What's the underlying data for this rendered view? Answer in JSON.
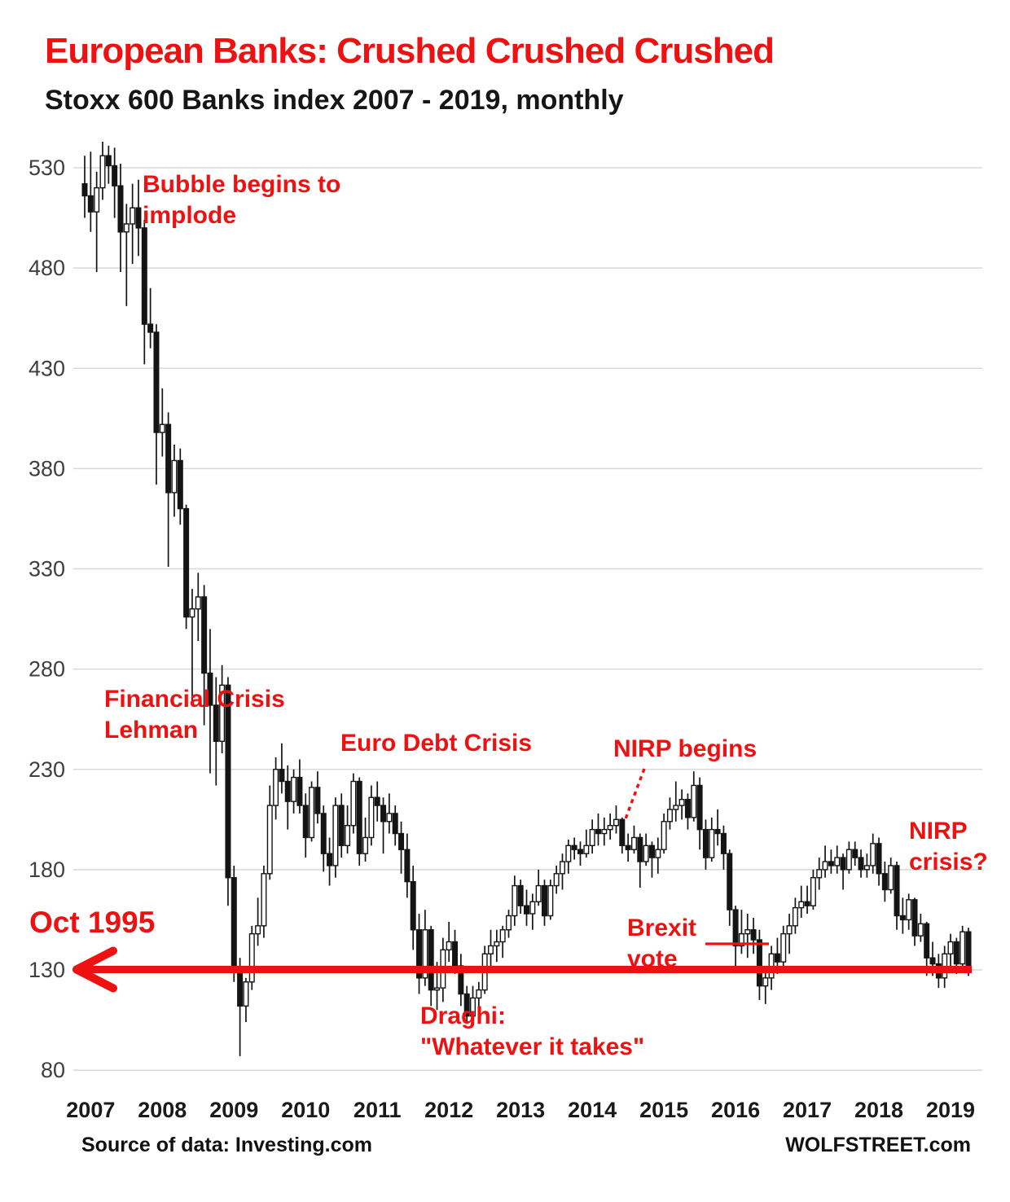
{
  "header": {
    "title": "European Banks: Crushed Crushed Crushed",
    "subtitle": "Stoxx 600 Banks index 2007 - 2019, monthly"
  },
  "footer": {
    "source": "Source of data: Investing.com",
    "brand": "WOLFSTREET.com"
  },
  "colors": {
    "accent_red": "#ee1111",
    "candle": "#141414",
    "grid": "#d8d8d8",
    "y_label": "#3f3f3f",
    "x_label": "#1a1a1a"
  },
  "annotations": {
    "bubble": {
      "line1": "Bubble begins to",
      "line2": "implode"
    },
    "financial_crisis": {
      "line1": "Financial Crisis",
      "line2": "Lehman"
    },
    "euro_debt": {
      "text": "Euro Debt Crisis"
    },
    "nirp_begins": {
      "text": "NIRP begins"
    },
    "brexit": {
      "line1": "Brexit",
      "line2": "vote"
    },
    "nirp_crisis": {
      "line1": "NIRP",
      "line2": "crisis?"
    },
    "oct_1995": {
      "text": "Oct 1995"
    },
    "draghi": {
      "line1": "Draghi:",
      "line2": "\"Whatever it takes\""
    }
  },
  "chart_data": {
    "type": "candlestick",
    "title": "European Banks: Crushed Crushed Crushed",
    "subtitle": "Stoxx 600 Banks index 2007 - 2019, monthly",
    "frequency": "monthly",
    "start": "2007-01",
    "end": "2019-05",
    "x_labels": [
      "2007",
      "2008",
      "2009",
      "2010",
      "2011",
      "2012",
      "2013",
      "2014",
      "2015",
      "2016",
      "2017",
      "2018",
      "2019"
    ],
    "y_ticks": [
      80,
      130,
      180,
      230,
      280,
      330,
      380,
      430,
      480,
      530
    ],
    "ylim": [
      65,
      555
    ],
    "grid": true,
    "reference_line": {
      "value": 130,
      "label": "Oct 1995",
      "style": "thick-red-left-arrow"
    },
    "pointers": {
      "brexit_line": {
        "x1_month": "2016-05",
        "x2_month": "2016-12",
        "value": 142,
        "style": "solid-red"
      },
      "nirp_begins_line": {
        "from_value": 229,
        "to_value": 204,
        "at_month": "2014-08",
        "style": "dashed-red"
      }
    },
    "ohlc_legend": [
      "open",
      "high",
      "low",
      "close"
    ],
    "ohlc": [
      [
        522,
        536,
        505,
        516
      ],
      [
        516,
        538,
        498,
        508
      ],
      [
        508,
        528,
        478,
        520
      ],
      [
        520,
        543,
        514,
        536
      ],
      [
        536,
        541,
        522,
        531
      ],
      [
        531,
        540,
        505,
        521
      ],
      [
        521,
        532,
        478,
        498
      ],
      [
        498,
        512,
        461,
        502
      ],
      [
        502,
        522,
        482,
        510
      ],
      [
        510,
        524,
        486,
        500
      ],
      [
        500,
        504,
        432,
        452
      ],
      [
        452,
        470,
        440,
        448
      ],
      [
        448,
        452,
        372,
        398
      ],
      [
        398,
        420,
        386,
        402
      ],
      [
        402,
        408,
        331,
        368
      ],
      [
        368,
        392,
        356,
        384
      ],
      [
        384,
        390,
        352,
        360
      ],
      [
        360,
        362,
        300,
        306
      ],
      [
        306,
        320,
        264,
        310
      ],
      [
        310,
        328,
        294,
        316
      ],
      [
        316,
        322,
        252,
        278
      ],
      [
        278,
        300,
        228,
        262
      ],
      [
        262,
        276,
        222,
        244
      ],
      [
        244,
        282,
        238,
        272
      ],
      [
        272,
        276,
        162,
        176
      ],
      [
        176,
        182,
        124,
        131
      ],
      [
        131,
        136,
        87,
        112
      ],
      [
        112,
        126,
        104,
        124
      ],
      [
        124,
        152,
        120,
        148
      ],
      [
        148,
        166,
        142,
        152
      ],
      [
        152,
        182,
        146,
        178
      ],
      [
        178,
        222,
        175,
        212
      ],
      [
        212,
        236,
        205,
        230
      ],
      [
        230,
        243,
        218,
        224
      ],
      [
        224,
        232,
        200,
        214
      ],
      [
        214,
        230,
        208,
        226
      ],
      [
        226,
        235,
        208,
        212
      ],
      [
        212,
        218,
        186,
        196
      ],
      [
        196,
        224,
        194,
        221
      ],
      [
        221,
        229,
        203,
        208
      ],
      [
        208,
        212,
        179,
        188
      ],
      [
        188,
        196,
        172,
        182
      ],
      [
        182,
        216,
        176,
        212
      ],
      [
        212,
        218,
        186,
        192
      ],
      [
        192,
        212,
        188,
        202
      ],
      [
        202,
        228,
        198,
        224
      ],
      [
        224,
        226,
        182,
        188
      ],
      [
        188,
        206,
        184,
        196
      ],
      [
        196,
        222,
        192,
        216
      ],
      [
        216,
        224,
        204,
        212
      ],
      [
        212,
        216,
        188,
        204
      ],
      [
        204,
        218,
        198,
        208
      ],
      [
        208,
        212,
        192,
        198
      ],
      [
        198,
        204,
        178,
        190
      ],
      [
        190,
        198,
        166,
        174
      ],
      [
        174,
        182,
        140,
        150
      ],
      [
        150,
        158,
        118,
        126
      ],
      [
        126,
        160,
        122,
        150
      ],
      [
        150,
        152,
        112,
        120
      ],
      [
        120,
        134,
        110,
        121
      ],
      [
        121,
        146,
        114,
        140
      ],
      [
        140,
        154,
        134,
        144
      ],
      [
        144,
        150,
        128,
        132
      ],
      [
        132,
        138,
        112,
        118
      ],
      [
        118,
        122,
        104,
        107
      ],
      [
        107,
        122,
        102,
        116
      ],
      [
        116,
        124,
        105,
        120
      ],
      [
        120,
        142,
        118,
        138
      ],
      [
        138,
        150,
        130,
        142
      ],
      [
        142,
        150,
        134,
        144
      ],
      [
        144,
        152,
        136,
        150
      ],
      [
        150,
        160,
        146,
        157
      ],
      [
        157,
        177,
        152,
        172
      ],
      [
        172,
        175,
        158,
        162
      ],
      [
        162,
        170,
        152,
        158
      ],
      [
        158,
        168,
        150,
        164
      ],
      [
        164,
        180,
        162,
        172
      ],
      [
        172,
        175,
        152,
        157
      ],
      [
        157,
        175,
        155,
        172
      ],
      [
        172,
        182,
        168,
        178
      ],
      [
        178,
        188,
        170,
        184
      ],
      [
        184,
        195,
        178,
        192
      ],
      [
        192,
        196,
        185,
        190
      ],
      [
        190,
        194,
        182,
        188
      ],
      [
        188,
        200,
        186,
        192
      ],
      [
        192,
        205,
        188,
        200
      ],
      [
        200,
        208,
        192,
        198
      ],
      [
        198,
        206,
        192,
        200
      ],
      [
        200,
        208,
        195,
        202
      ],
      [
        202,
        212,
        198,
        205
      ],
      [
        205,
        206,
        188,
        192
      ],
      [
        192,
        198,
        184,
        190
      ],
      [
        190,
        202,
        188,
        196
      ],
      [
        196,
        198,
        171,
        184
      ],
      [
        184,
        198,
        182,
        192
      ],
      [
        192,
        194,
        176,
        186
      ],
      [
        186,
        196,
        178,
        190
      ],
      [
        190,
        208,
        188,
        204
      ],
      [
        204,
        216,
        200,
        210
      ],
      [
        210,
        224,
        204,
        212
      ],
      [
        212,
        220,
        205,
        215
      ],
      [
        215,
        218,
        200,
        206
      ],
      [
        206,
        229,
        204,
        222
      ],
      [
        222,
        226,
        190,
        200
      ],
      [
        200,
        205,
        180,
        186
      ],
      [
        186,
        206,
        184,
        200
      ],
      [
        200,
        210,
        192,
        198
      ],
      [
        198,
        202,
        180,
        188
      ],
      [
        188,
        190,
        152,
        160
      ],
      [
        160,
        162,
        130,
        142
      ],
      [
        142,
        160,
        138,
        148
      ],
      [
        148,
        158,
        136,
        150
      ],
      [
        150,
        156,
        138,
        145
      ],
      [
        145,
        150,
        115,
        122
      ],
      [
        122,
        132,
        113,
        126
      ],
      [
        126,
        142,
        120,
        138
      ],
      [
        138,
        146,
        128,
        134
      ],
      [
        134,
        152,
        132,
        148
      ],
      [
        148,
        158,
        138,
        152
      ],
      [
        152,
        166,
        148,
        161
      ],
      [
        161,
        172,
        156,
        164
      ],
      [
        164,
        172,
        158,
        162
      ],
      [
        162,
        180,
        160,
        176
      ],
      [
        176,
        186,
        170,
        180
      ],
      [
        180,
        192,
        176,
        184
      ],
      [
        184,
        190,
        178,
        182
      ],
      [
        182,
        192,
        178,
        186
      ],
      [
        186,
        188,
        170,
        180
      ],
      [
        180,
        194,
        178,
        190
      ],
      [
        190,
        194,
        182,
        186
      ],
      [
        186,
        190,
        176,
        180
      ],
      [
        180,
        188,
        176,
        182
      ],
      [
        182,
        198,
        178,
        193
      ],
      [
        193,
        196,
        172,
        178
      ],
      [
        178,
        184,
        164,
        170
      ],
      [
        170,
        186,
        168,
        182
      ],
      [
        182,
        184,
        150,
        157
      ],
      [
        157,
        166,
        148,
        155
      ],
      [
        155,
        168,
        150,
        165
      ],
      [
        165,
        166,
        142,
        147
      ],
      [
        147,
        158,
        144,
        153
      ],
      [
        153,
        154,
        127,
        136
      ],
      [
        136,
        144,
        127,
        133
      ],
      [
        133,
        138,
        121,
        126
      ],
      [
        126,
        142,
        121,
        138
      ],
      [
        138,
        148,
        132,
        144
      ],
      [
        144,
        146,
        128,
        133
      ],
      [
        133,
        152,
        131,
        149
      ],
      [
        149,
        151,
        127,
        131
      ]
    ]
  }
}
